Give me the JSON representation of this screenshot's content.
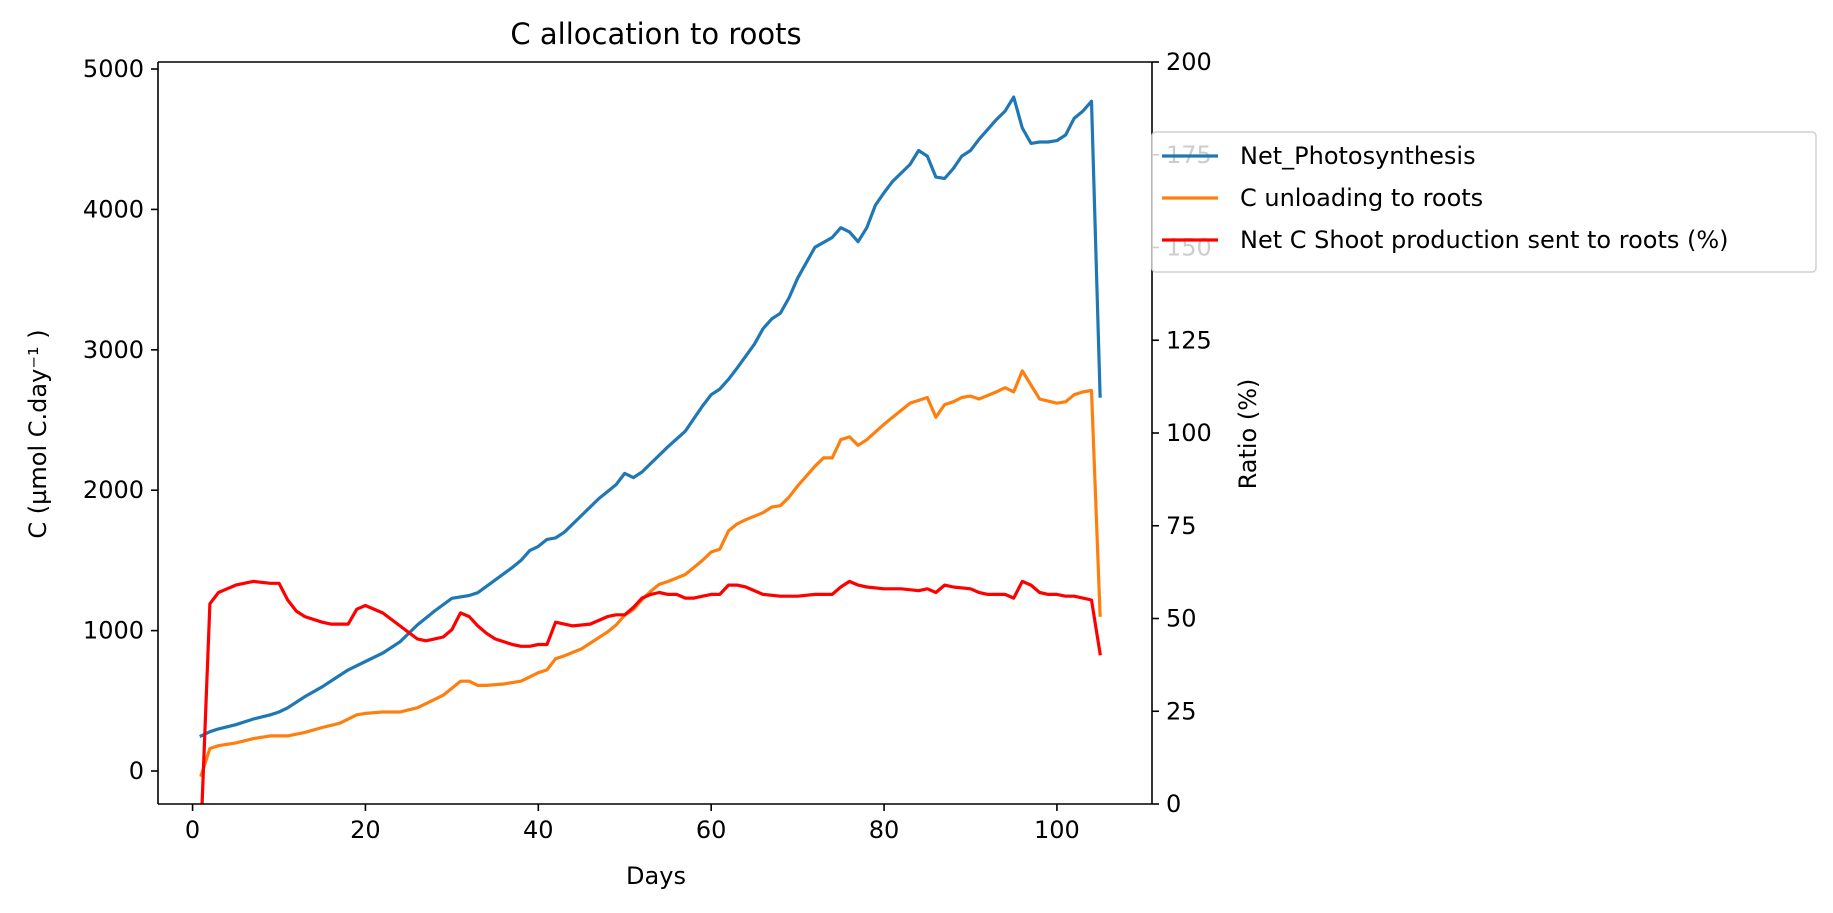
{
  "chart_data": {
    "type": "line",
    "title": "C allocation to roots",
    "xlabel": "Days",
    "ylabel": "C (µmol C.day⁻¹ )",
    "y2label": "Ratio (%)",
    "xlim": [
      -4,
      111
    ],
    "ylim": [
      -235,
      5050
    ],
    "y2lim": [
      0,
      200
    ],
    "xticks": [
      0,
      20,
      40,
      60,
      80,
      100
    ],
    "yticks": [
      0,
      1000,
      2000,
      3000,
      4000,
      5000
    ],
    "y2ticks": [
      0,
      25,
      50,
      75,
      100,
      125,
      150,
      175,
      200
    ],
    "legend_position": "upper-right-outside",
    "grid": false,
    "series": [
      {
        "name": "Net_Photosynthesis",
        "axis": "left",
        "color": "#1f77b4",
        "x": [
          1,
          2,
          3,
          5,
          7,
          9,
          10,
          11,
          13,
          15,
          17,
          18,
          20,
          22,
          24,
          26,
          28,
          30,
          32,
          33,
          35,
          37,
          38,
          39,
          40,
          41,
          42,
          43,
          45,
          47,
          48,
          49,
          50,
          51,
          52,
          53,
          55,
          57,
          59,
          60,
          61,
          62,
          63,
          65,
          66,
          67,
          68,
          69,
          70,
          72,
          74,
          75,
          76,
          77,
          78,
          79,
          80,
          81,
          83,
          84,
          85,
          86,
          87,
          88,
          89,
          90,
          91,
          93,
          94,
          95,
          96,
          97,
          98,
          99,
          100,
          101,
          102,
          103,
          104,
          105
        ],
        "y": [
          250,
          280,
          300,
          330,
          370,
          400,
          420,
          450,
          530,
          600,
          680,
          720,
          780,
          840,
          920,
          1040,
          1140,
          1230,
          1250,
          1270,
          1360,
          1450,
          1500,
          1570,
          1600,
          1650,
          1660,
          1700,
          1820,
          1940,
          1990,
          2040,
          2120,
          2090,
          2130,
          2190,
          2310,
          2420,
          2600,
          2680,
          2720,
          2790,
          2870,
          3040,
          3150,
          3220,
          3260,
          3370,
          3510,
          3730,
          3800,
          3870,
          3840,
          3770,
          3870,
          4030,
          4120,
          4200,
          4320,
          4420,
          4380,
          4230,
          4220,
          4290,
          4380,
          4420,
          4500,
          4640,
          4700,
          4800,
          4580,
          4470,
          4480,
          4480,
          4490,
          4530,
          4650,
          4700,
          4770,
          2670
        ]
      },
      {
        "name": "C unloading to roots",
        "axis": "left",
        "color": "#ff7f0e",
        "x": [
          1,
          2,
          3,
          5,
          7,
          9,
          10,
          11,
          13,
          15,
          17,
          18,
          19,
          20,
          22,
          24,
          26,
          28,
          29,
          30,
          31,
          32,
          33,
          34,
          36,
          38,
          40,
          41,
          42,
          43,
          45,
          47,
          48,
          49,
          50,
          51,
          52,
          53,
          54,
          55,
          57,
          59,
          60,
          61,
          62,
          63,
          64,
          66,
          67,
          68,
          69,
          70,
          72,
          73,
          74,
          75,
          76,
          77,
          78,
          80,
          82,
          83,
          84,
          85,
          86,
          87,
          88,
          89,
          90,
          91,
          93,
          94,
          95,
          96,
          98,
          100,
          101,
          102,
          103,
          104,
          105
        ],
        "y": [
          -30,
          160,
          180,
          200,
          230,
          250,
          250,
          250,
          275,
          310,
          340,
          370,
          400,
          410,
          420,
          420,
          450,
          510,
          540,
          590,
          640,
          640,
          610,
          610,
          620,
          640,
          700,
          720,
          800,
          820,
          870,
          950,
          990,
          1040,
          1110,
          1150,
          1220,
          1280,
          1330,
          1350,
          1400,
          1500,
          1560,
          1580,
          1710,
          1760,
          1790,
          1840,
          1880,
          1890,
          1950,
          2030,
          2170,
          2230,
          2230,
          2360,
          2380,
          2320,
          2360,
          2470,
          2570,
          2620,
          2640,
          2660,
          2520,
          2610,
          2630,
          2660,
          2670,
          2650,
          2700,
          2730,
          2700,
          2850,
          2650,
          2620,
          2630,
          2680,
          2700,
          2710,
          1110
        ]
      },
      {
        "name": "Net C Shoot production sent to roots (%)",
        "axis": "right",
        "color": "#ff0000",
        "x": [
          1,
          2,
          3,
          4,
          5,
          7,
          9,
          10,
          11,
          12,
          13,
          15,
          16,
          18,
          19,
          20,
          22,
          24,
          26,
          27,
          28,
          29,
          30,
          31,
          32,
          33,
          34,
          35,
          37,
          38,
          39,
          40,
          41,
          42,
          43,
          44,
          46,
          48,
          49,
          50,
          51,
          52,
          53,
          54,
          55,
          56,
          57,
          58,
          59,
          60,
          61,
          62,
          63,
          64,
          66,
          68,
          70,
          72,
          74,
          75,
          76,
          77,
          78,
          80,
          82,
          84,
          85,
          86,
          87,
          88,
          90,
          91,
          92,
          93,
          94,
          95,
          96,
          97,
          98,
          99,
          100,
          101,
          102,
          103,
          104,
          105
        ],
        "y": [
          -6,
          54,
          57,
          58,
          59,
          60,
          59.5,
          59.5,
          55,
          52,
          50.5,
          49,
          48.5,
          48.5,
          52.5,
          53.5,
          51.5,
          48,
          44.5,
          44,
          44.5,
          45,
          47,
          51.5,
          50.5,
          48,
          46,
          44.5,
          43,
          42.5,
          42.5,
          43,
          43,
          49,
          48.5,
          48,
          48.5,
          50.5,
          51,
          51,
          53,
          55.5,
          56.5,
          57,
          56.5,
          56.5,
          55.5,
          55.5,
          56,
          56.5,
          56.5,
          59,
          59,
          58.5,
          56.5,
          56,
          56,
          56.5,
          56.5,
          58.5,
          60,
          59,
          58.5,
          58,
          58,
          57.5,
          58,
          57,
          59,
          58.5,
          58,
          57,
          56.5,
          56.5,
          56.5,
          55.5,
          60,
          59,
          57,
          56.5,
          56.5,
          56,
          56,
          55.5,
          55,
          40.5
        ]
      }
    ]
  }
}
